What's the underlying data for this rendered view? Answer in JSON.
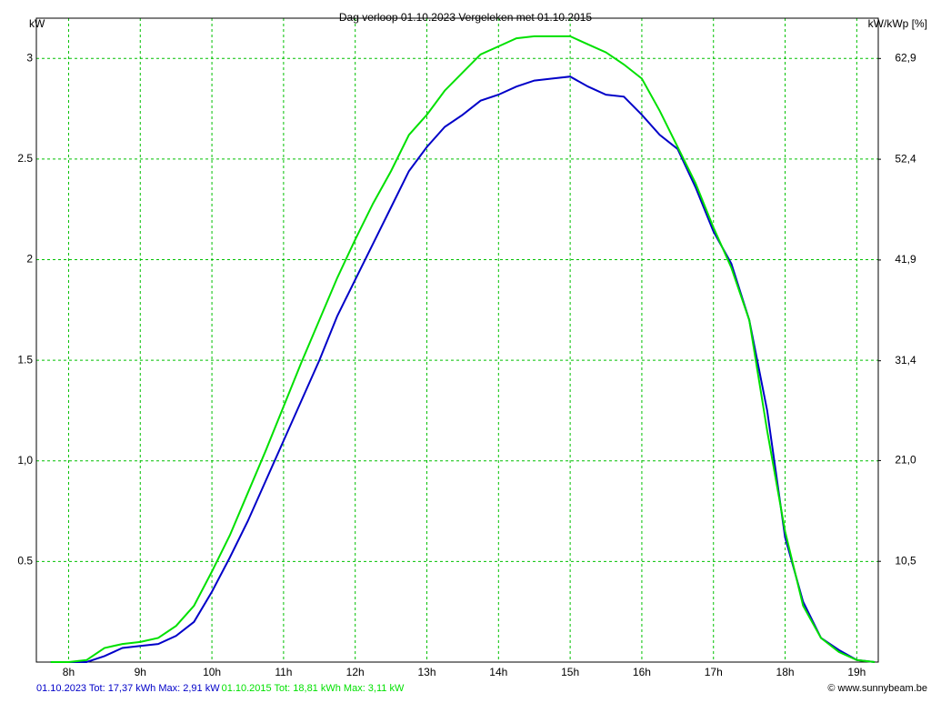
{
  "chart_data": {
    "type": "line",
    "title": "Dag  verloop 01.10.2023   Vergeleken met 01.10.2015",
    "ylabel": "kW",
    "y2label": "kW/kWp [%]",
    "footer": "© www.sunnybeam.be",
    "x": [
      7.75,
      8.0,
      8.25,
      8.5,
      8.75,
      9.0,
      9.25,
      9.5,
      9.75,
      10.0,
      10.25,
      10.5,
      10.75,
      11.0,
      11.25,
      11.5,
      11.75,
      12.0,
      12.25,
      12.5,
      12.75,
      13.0,
      13.25,
      13.5,
      13.75,
      14.0,
      14.25,
      14.5,
      14.75,
      15.0,
      15.25,
      15.5,
      15.75,
      16.0,
      16.25,
      16.5,
      16.75,
      17.0,
      17.25,
      17.5,
      17.75,
      18.0,
      18.25,
      18.5,
      18.75,
      19.0,
      19.25
    ],
    "series": [
      {
        "name": "01.10.2023 Tot: 17,37 kWh Max: 2,91 kW",
        "color": "#0000c8",
        "values": [
          0,
          0,
          0,
          0.03,
          0.07,
          0.08,
          0.09,
          0.13,
          0.2,
          0.35,
          0.52,
          0.7,
          0.9,
          1.1,
          1.3,
          1.5,
          1.72,
          1.9,
          2.08,
          2.26,
          2.44,
          2.56,
          2.66,
          2.72,
          2.79,
          2.82,
          2.86,
          2.89,
          2.9,
          2.91,
          2.86,
          2.82,
          2.81,
          2.72,
          2.62,
          2.55,
          2.36,
          2.14,
          1.98,
          1.7,
          1.25,
          0.62,
          0.3,
          0.12,
          0.06,
          0.01,
          0
        ]
      },
      {
        "name": "01.10.2015 Tot: 18,81 kWh Max: 3,11 kW",
        "color": "#00e000",
        "values": [
          0,
          0,
          0.01,
          0.07,
          0.09,
          0.1,
          0.12,
          0.18,
          0.28,
          0.45,
          0.63,
          0.84,
          1.05,
          1.27,
          1.49,
          1.7,
          1.91,
          2.1,
          2.28,
          2.44,
          2.62,
          2.72,
          2.84,
          2.93,
          3.02,
          3.06,
          3.1,
          3.11,
          3.11,
          3.11,
          3.07,
          3.03,
          2.97,
          2.9,
          2.74,
          2.56,
          2.38,
          2.16,
          1.96,
          1.7,
          1.15,
          0.65,
          0.28,
          0.12,
          0.05,
          0.01,
          0
        ]
      }
    ],
    "xlim": [
      7.55,
      19.3
    ],
    "xticks": [
      {
        "value": 8,
        "label": "8h"
      },
      {
        "value": 9,
        "label": "9h"
      },
      {
        "value": 10,
        "label": "10h"
      },
      {
        "value": 11,
        "label": "11h"
      },
      {
        "value": 12,
        "label": "12h"
      },
      {
        "value": 13,
        "label": "13h"
      },
      {
        "value": 14,
        "label": "14h"
      },
      {
        "value": 15,
        "label": "15h"
      },
      {
        "value": 16,
        "label": "16h"
      },
      {
        "value": 17,
        "label": "17h"
      },
      {
        "value": 18,
        "label": "18h"
      },
      {
        "value": 19,
        "label": "19h"
      }
    ],
    "ylim": [
      0,
      3.2
    ],
    "yticks": [
      0.5,
      {
        "value": 1,
        "label": "1,0"
      },
      1.5,
      2,
      2.5,
      3
    ],
    "y2lim": [
      0,
      67.1
    ],
    "y2ticks": [
      {
        "value": 10.5,
        "label": "10,5"
      },
      {
        "value": 21.0,
        "label": "21,0"
      },
      {
        "value": 31.4,
        "label": "31,4"
      },
      {
        "value": 41.9,
        "label": "41,9"
      },
      {
        "value": 52.4,
        "label": "52,4"
      },
      {
        "value": 62.9,
        "label": "62,9"
      }
    ],
    "grid": true,
    "grid_color": "#00c000"
  }
}
